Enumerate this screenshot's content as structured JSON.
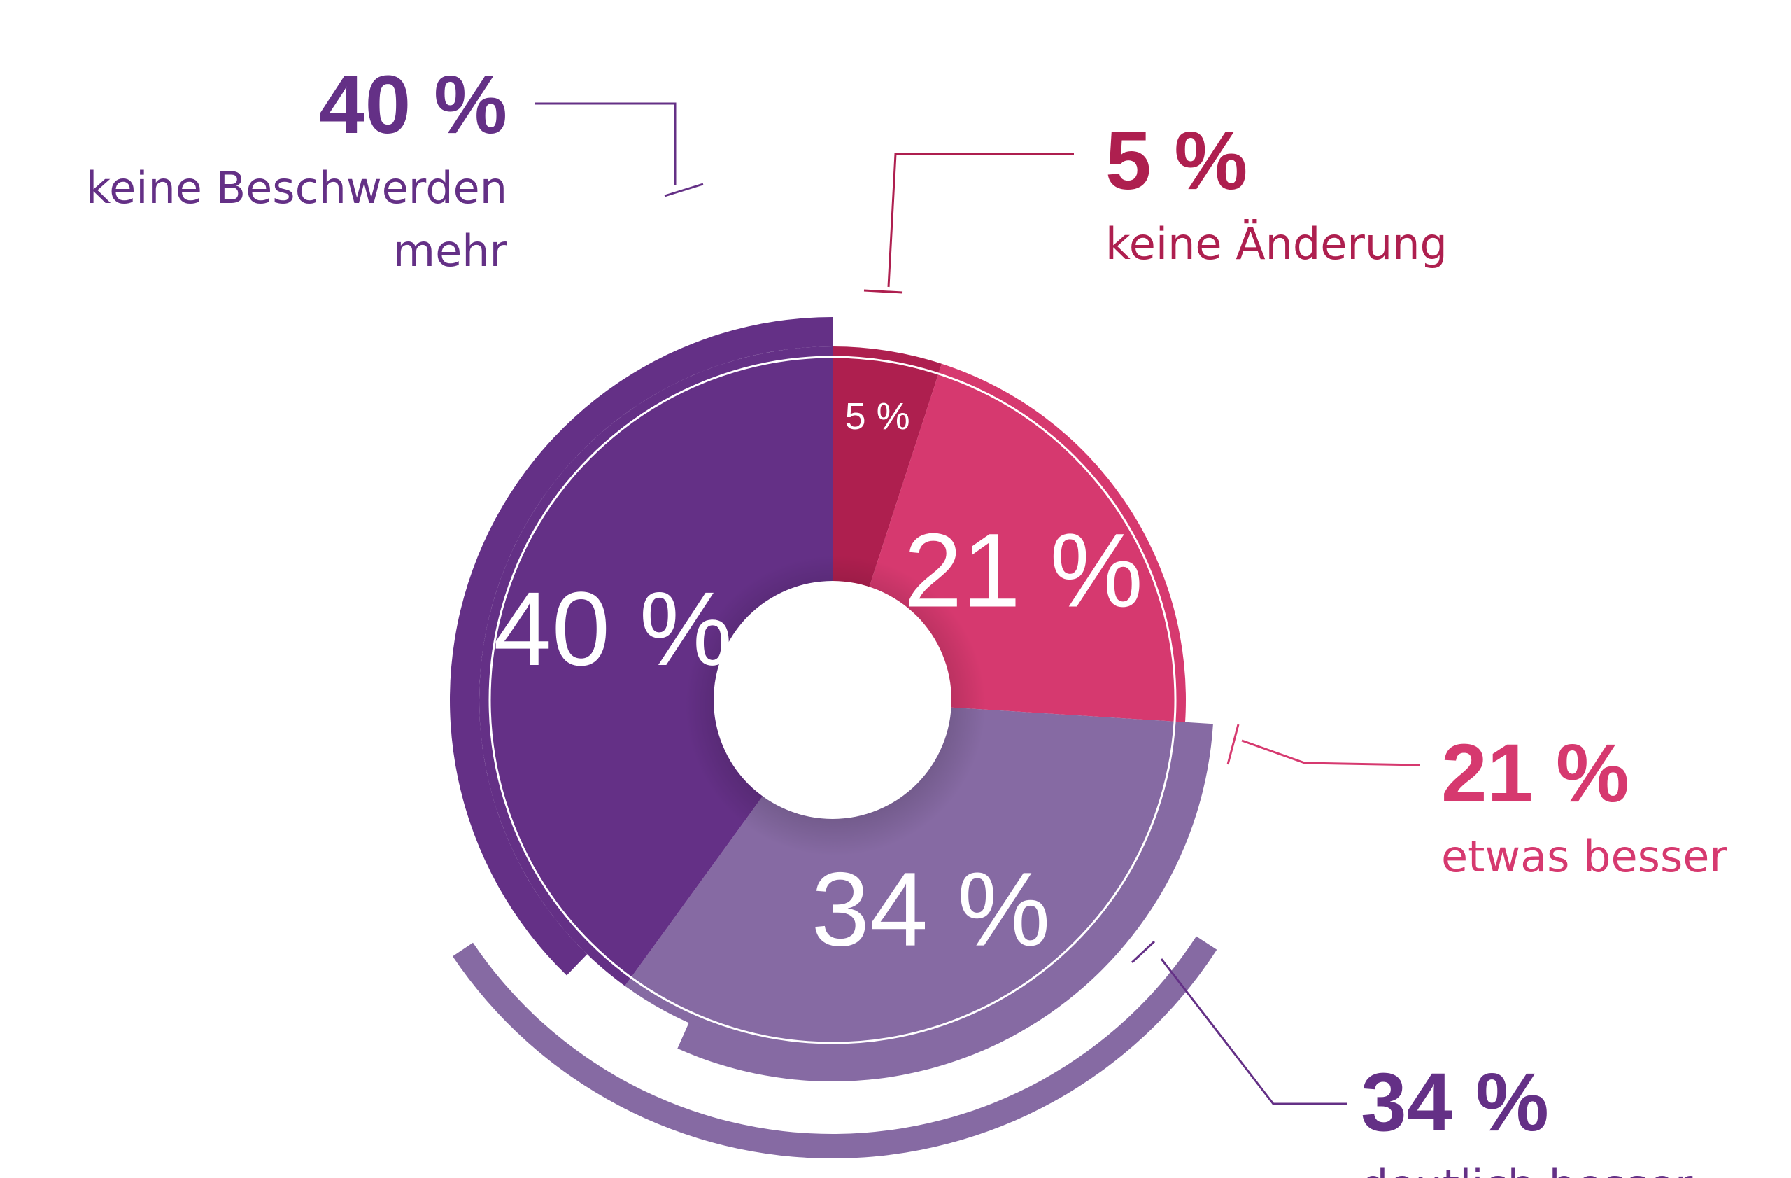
{
  "chart_data": {
    "type": "pie",
    "title": "",
    "slices": [
      {
        "label": "keine Änderung",
        "value": 5,
        "display": "5 %",
        "color": "#ae1f4f"
      },
      {
        "label": "etwas besser",
        "value": 21,
        "display": "21 %",
        "color": "#d6396f"
      },
      {
        "label": "deutlich besser",
        "value": 34,
        "display": "34 %",
        "color": "#866aa3"
      },
      {
        "label": "keine Beschwerden mehr",
        "value": 40,
        "display": "40 %",
        "color": "#643086"
      }
    ],
    "callouts": [
      {
        "pct": "40 %",
        "lines": [
          "keine Beschwerden",
          "mehr"
        ],
        "color": "#643086"
      },
      {
        "pct": "5 %",
        "lines": [
          "keine Änderung"
        ],
        "color": "#ae1f4f"
      },
      {
        "pct": "21 %",
        "lines": [
          "etwas besser"
        ],
        "color": "#d6396f"
      },
      {
        "pct": "34 %",
        "lines": [
          "deutlich besser"
        ],
        "color": "#643086"
      }
    ],
    "accent_arc_colors": {
      "keine Beschwerden mehr": "#643086",
      "deutlich besser": "#866aa3"
    },
    "legend": "none",
    "grid": false
  }
}
